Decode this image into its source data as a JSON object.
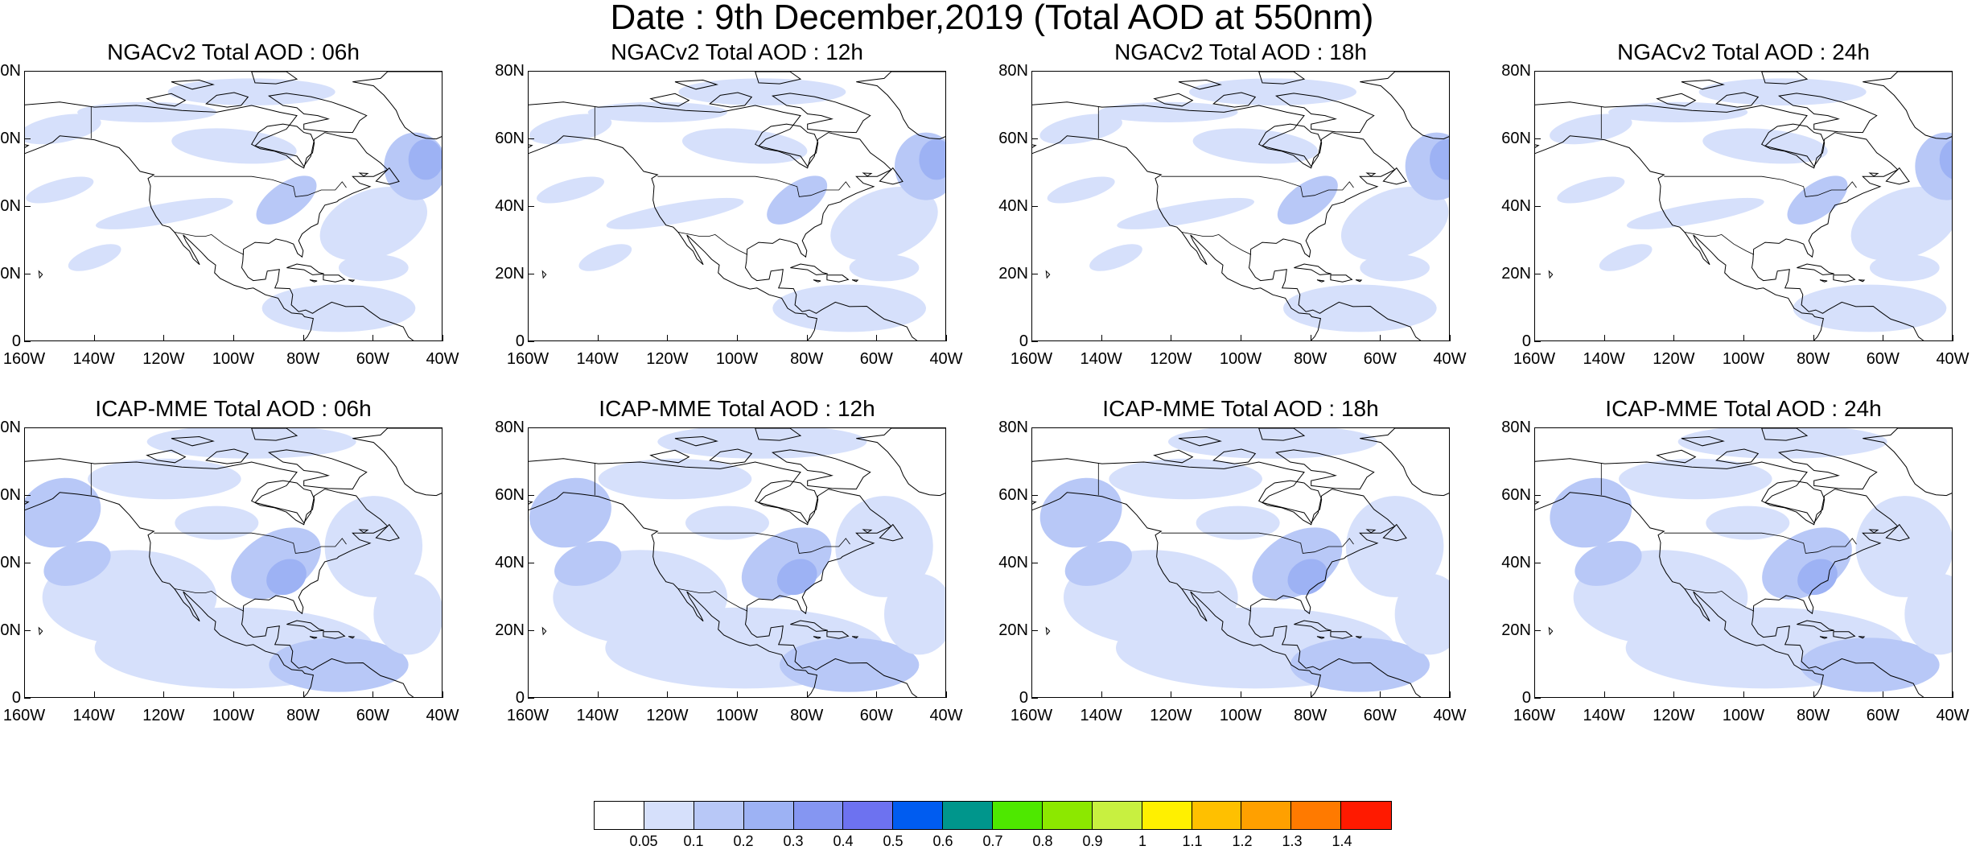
{
  "title": "Date : 9th December,2019 (Total AOD at 550nm)",
  "panels": [
    {
      "title": "NGACv2 Total AOD : 06h",
      "model": "NGAC",
      "hour": "06"
    },
    {
      "title": "NGACv2 Total AOD : 12h",
      "model": "NGAC",
      "hour": "12"
    },
    {
      "title": "NGACv2 Total AOD : 18h",
      "model": "NGAC",
      "hour": "18"
    },
    {
      "title": "NGACv2 Total AOD : 24h",
      "model": "NGAC",
      "hour": "24"
    },
    {
      "title": "ICAP-MME Total AOD : 06h",
      "model": "ICAP",
      "hour": "06"
    },
    {
      "title": "ICAP-MME Total AOD : 12h",
      "model": "ICAP",
      "hour": "12"
    },
    {
      "title": "ICAP-MME Total AOD : 18h",
      "model": "ICAP",
      "hour": "18"
    },
    {
      "title": "ICAP-MME Total AOD : 24h",
      "model": "ICAP",
      "hour": "24"
    }
  ],
  "axes": {
    "lat_ticks": [
      "80N",
      "60N",
      "40N",
      "20N",
      "0"
    ],
    "lon_ticks": [
      "160W",
      "140W",
      "120W",
      "100W",
      "80W",
      "60W",
      "40W"
    ],
    "lat_range": [
      0,
      80
    ],
    "lon_range": [
      -160,
      -40
    ]
  },
  "colorbar": {
    "labels": [
      "0.05",
      "0.1",
      "0.2",
      "0.3",
      "0.4",
      "0.5",
      "0.6",
      "0.7",
      "0.8",
      "0.9",
      "1",
      "1.1",
      "1.2",
      "1.3",
      "1.4"
    ],
    "colors": [
      "#ffffff",
      "#d6e0fb",
      "#b8c8f7",
      "#9db2f4",
      "#8596f2",
      "#6d72f0",
      "#005cf0",
      "#00968c",
      "#4ee800",
      "#8ce800",
      "#c8f040",
      "#fff000",
      "#ffc000",
      "#ffa000",
      "#ff7a00",
      "#ff1a00"
    ]
  },
  "colors": {
    "land_outline": "#000000",
    "low_aod": "#d6e0fb",
    "mid_aod": "#b8c8f7",
    "high_aod": "#9db2f4"
  }
}
